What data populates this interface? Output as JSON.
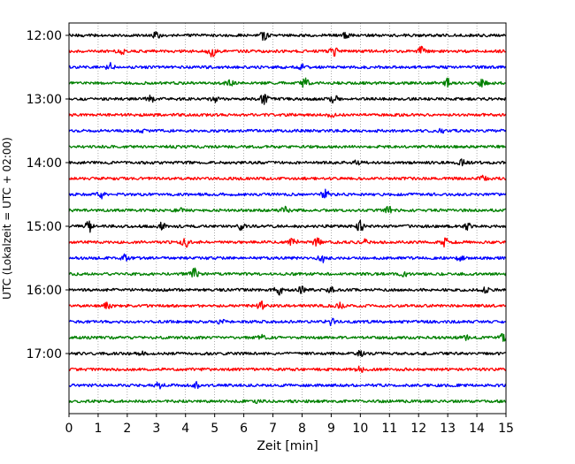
{
  "chart_data": {
    "type": "line",
    "title": "",
    "xlabel": "Zeit  [min]",
    "ylabel": "UTC (Lokalzeit = UTC + 02:00)",
    "xlim": [
      0,
      15
    ],
    "xticks": [
      0,
      1,
      2,
      3,
      4,
      5,
      6,
      7,
      8,
      9,
      10,
      11,
      12,
      13,
      14,
      15
    ],
    "xtick_labels": [
      "0",
      "1",
      "2",
      "3",
      "4",
      "5",
      "6",
      "7",
      "8",
      "9",
      "10",
      "11",
      "12",
      "13",
      "14",
      "15"
    ],
    "ytick_labels": [
      "12:00",
      "13:00",
      "14:00",
      "15:00",
      "16:00",
      "17:00"
    ],
    "grid": "vertical dotted",
    "color_cycle": [
      "#000000",
      "#ff0000",
      "#0000ff",
      "#008000"
    ],
    "series": [
      {
        "start": "12:00",
        "bursts": [
          [
            6.7,
            1.0
          ],
          [
            3.0,
            0.5
          ],
          [
            9.5,
            0.4
          ]
        ]
      },
      {
        "start": "12:15",
        "bursts": [
          [
            4.9,
            1.0
          ],
          [
            9.1,
            0.9
          ],
          [
            12.1,
            0.8
          ],
          [
            1.8,
            0.6
          ]
        ]
      },
      {
        "start": "12:30",
        "bursts": [
          [
            1.4,
            0.8
          ],
          [
            8.0,
            0.4
          ]
        ]
      },
      {
        "start": "12:45",
        "bursts": [
          [
            8.1,
            0.9
          ],
          [
            13.0,
            0.8
          ],
          [
            14.2,
            0.8
          ],
          [
            5.5,
            0.6
          ]
        ]
      },
      {
        "start": "13:00",
        "bursts": [
          [
            6.7,
            1.0
          ],
          [
            2.8,
            0.6
          ],
          [
            9.1,
            0.7
          ],
          [
            5.0,
            0.5
          ]
        ]
      },
      {
        "start": "13:15",
        "bursts": [
          [
            9.0,
            0.3
          ]
        ]
      },
      {
        "start": "13:30",
        "bursts": [
          [
            12.8,
            0.3
          ],
          [
            2.5,
            0.3
          ]
        ]
      },
      {
        "start": "13:45",
        "bursts": [
          [
            3.5,
            0.3
          ]
        ]
      },
      {
        "start": "14:00",
        "bursts": [
          [
            9.9,
            0.5
          ],
          [
            13.5,
            0.5
          ]
        ]
      },
      {
        "start": "14:15",
        "bursts": [
          [
            14.2,
            0.4
          ]
        ]
      },
      {
        "start": "14:30",
        "bursts": [
          [
            1.1,
            0.8
          ],
          [
            8.8,
            0.8
          ]
        ]
      },
      {
        "start": "14:45",
        "bursts": [
          [
            11.0,
            0.8
          ],
          [
            7.4,
            0.6
          ],
          [
            3.8,
            0.4
          ]
        ]
      },
      {
        "start": "15:00",
        "bursts": [
          [
            0.7,
            1.0
          ],
          [
            10.0,
            1.0
          ],
          [
            3.2,
            0.8
          ],
          [
            5.9,
            0.7
          ],
          [
            13.7,
            0.7
          ]
        ]
      },
      {
        "start": "15:15",
        "bursts": [
          [
            4.0,
            0.9
          ],
          [
            7.7,
            0.9
          ],
          [
            8.5,
            0.8
          ],
          [
            12.9,
            1.0
          ],
          [
            10.2,
            0.5
          ]
        ]
      },
      {
        "start": "15:30",
        "bursts": [
          [
            1.9,
            0.9
          ],
          [
            8.7,
            0.7
          ],
          [
            13.4,
            0.5
          ]
        ]
      },
      {
        "start": "15:45",
        "bursts": [
          [
            4.3,
            1.0
          ],
          [
            11.5,
            0.4
          ]
        ]
      },
      {
        "start": "16:00",
        "bursts": [
          [
            7.2,
            1.0
          ],
          [
            8.0,
            0.6
          ],
          [
            9.0,
            0.5
          ],
          [
            14.3,
            0.5
          ]
        ]
      },
      {
        "start": "16:15",
        "bursts": [
          [
            1.3,
            0.7
          ],
          [
            6.6,
            0.8
          ],
          [
            9.3,
            0.6
          ]
        ]
      },
      {
        "start": "16:30",
        "bursts": [
          [
            9.0,
            0.6
          ],
          [
            5.2,
            0.4
          ]
        ]
      },
      {
        "start": "16:45",
        "bursts": [
          [
            14.9,
            0.7
          ],
          [
            13.6,
            0.5
          ],
          [
            6.6,
            0.4
          ]
        ]
      },
      {
        "start": "17:00",
        "bursts": [
          [
            10.0,
            0.4
          ],
          [
            2.5,
            0.3
          ]
        ]
      },
      {
        "start": "17:15",
        "bursts": [
          [
            10.0,
            0.5
          ]
        ]
      },
      {
        "start": "17:30",
        "bursts": [
          [
            3.1,
            0.6
          ],
          [
            4.4,
            0.6
          ]
        ]
      },
      {
        "start": "17:45",
        "bursts": [
          [
            6.5,
            0.3
          ]
        ]
      }
    ]
  }
}
